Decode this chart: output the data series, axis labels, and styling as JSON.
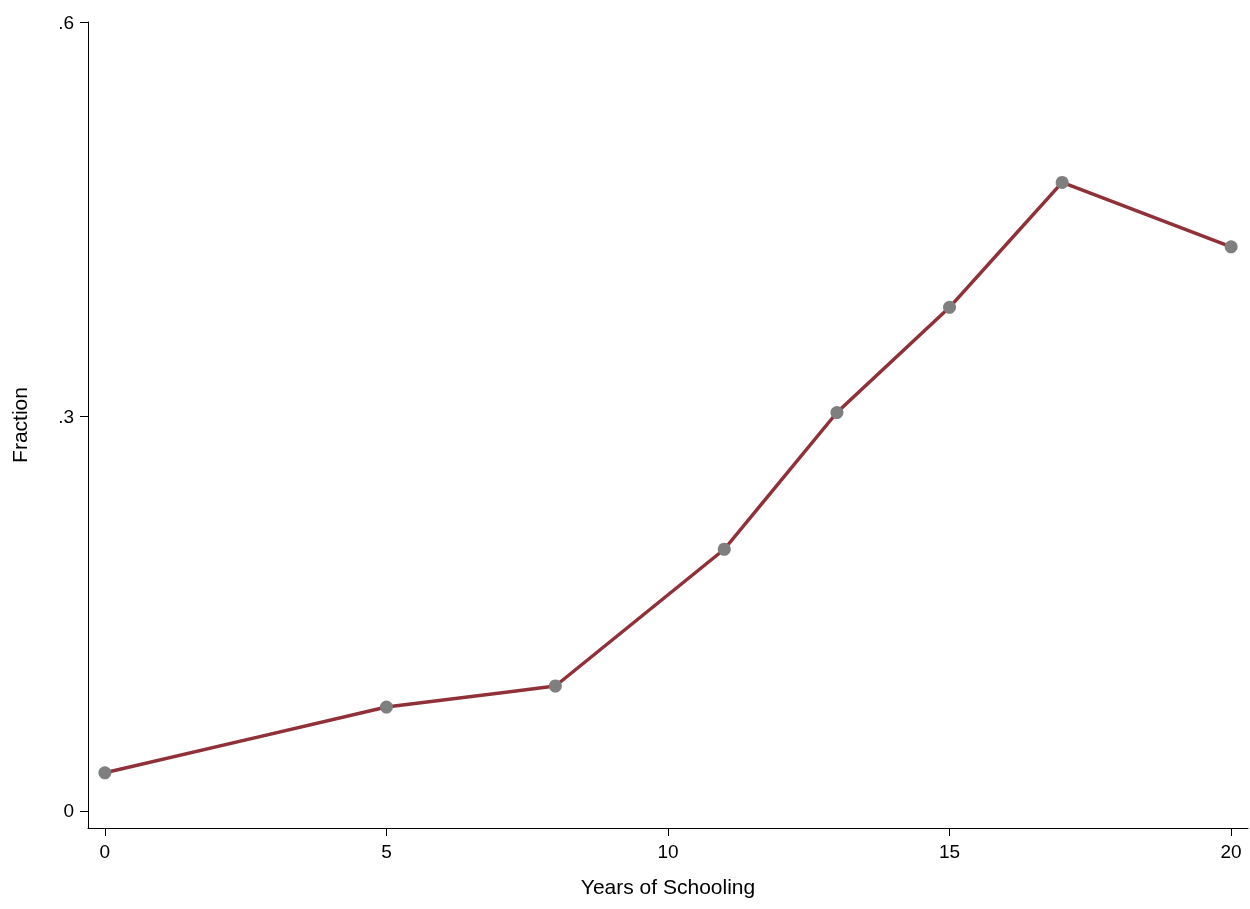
{
  "chart_data": {
    "type": "line",
    "xlabel": "Years of Schooling",
    "ylabel": "Fraction",
    "x": [
      0,
      5,
      8,
      11,
      13,
      15,
      17,
      20
    ],
    "series": [
      {
        "color": "#903038",
        "colors": [
          "#7f7f7f",
          "#7f7f7f",
          "#7f7f7f",
          "#7f7f7f",
          "#7f7f7f",
          "#7f7f7f",
          "#7f7f7f",
          "#7f7f7f"
        ],
        "values": [
          0.029,
          0.079,
          0.095,
          0.199,
          0.303,
          0.383,
          0.478,
          0.429
        ]
      }
    ],
    "xlim": [
      -0.3,
      20.3
    ],
    "xticks": [
      0,
      5,
      10,
      15,
      20
    ],
    "ylim": [
      -0.013,
      0.6
    ],
    "yticks": [
      {
        "value": 0,
        "label": "0"
      },
      {
        "value": 0.3,
        "label": ".3"
      },
      {
        "value": 0.6,
        "label": ".6"
      }
    ],
    "grid": false,
    "marker": "circle",
    "line_style": "solid"
  }
}
